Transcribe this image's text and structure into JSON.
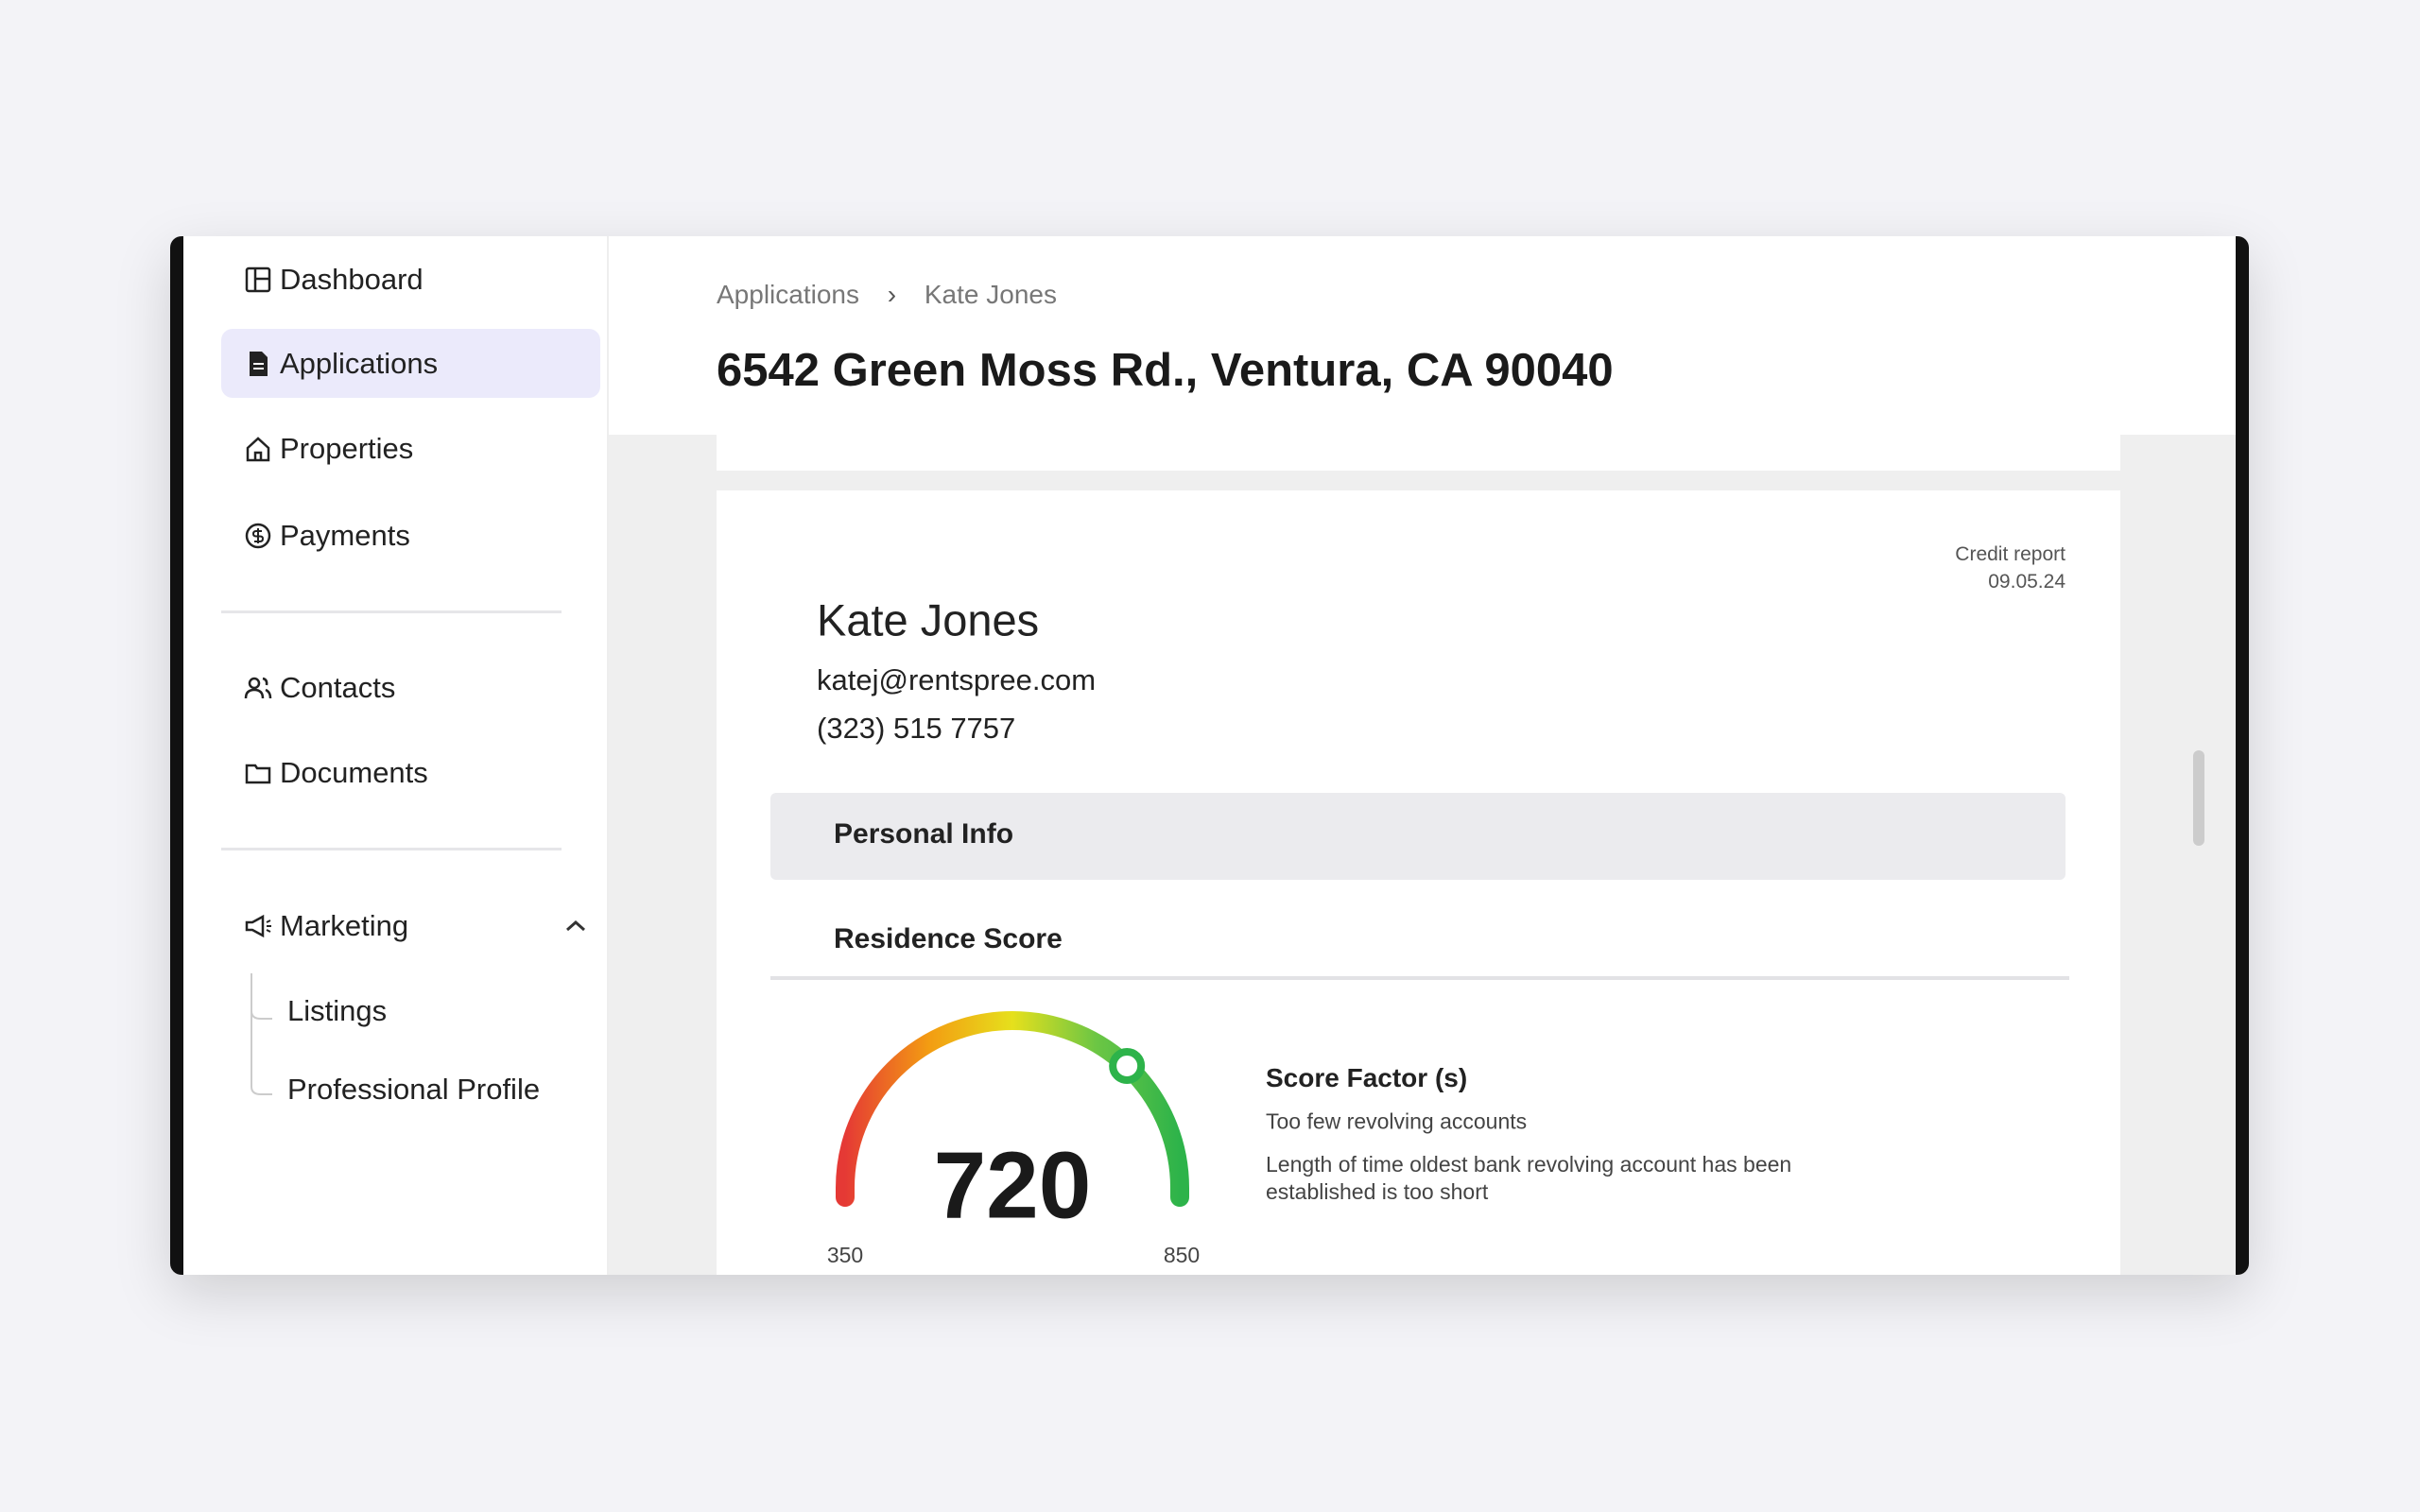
{
  "sidebar": {
    "items": [
      "Dashboard",
      "Applications",
      "Properties",
      "Payments"
    ],
    "items2": [
      "Contacts",
      "Documents"
    ],
    "marketing": "Marketing",
    "subitems": [
      "Listings",
      "Professional Profile"
    ]
  },
  "header": {
    "breadcrumb": [
      "Applications",
      "Kate Jones"
    ],
    "title": "6542 Green Moss Rd., Ventura, CA 90040"
  },
  "card": {
    "report_label": "Credit report",
    "report_date": "09.05.24",
    "name": "Kate Jones",
    "email": "katej@rentspree.com",
    "phone": "(323) 515 7757",
    "section": "Personal Info",
    "subsection": "Residence Score"
  },
  "gauge": {
    "score": 720,
    "min": 350,
    "max": 850
  },
  "factors": {
    "title": "Score Factor (s)",
    "items": [
      "Too few revolving accounts",
      "Length of time oldest bank revolving account has been established is too short"
    ]
  }
}
